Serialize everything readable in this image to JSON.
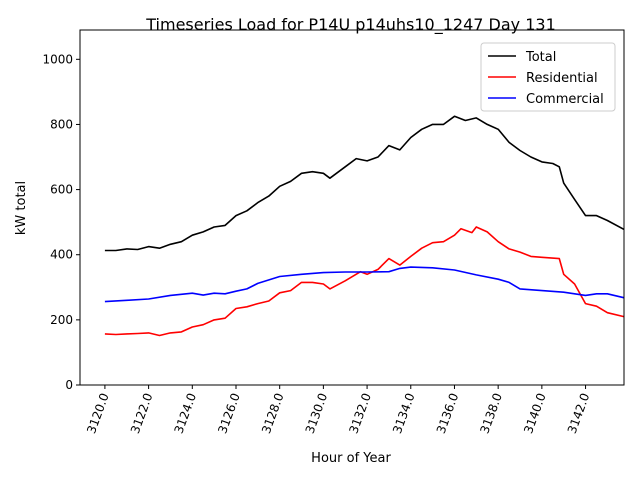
{
  "chart_data": {
    "type": "line",
    "title": "Timeseries Load for P14U p14uhs10_1247  Day 131",
    "xlabel": "Hour of Year",
    "ylabel": "kW total",
    "xlim": [
      3118.86,
      3143.76
    ],
    "ylim": [
      0,
      1090
    ],
    "xticks": [
      "3120.0",
      "3122.0",
      "3124.0",
      "3126.0",
      "3128.0",
      "3130.0",
      "3132.0",
      "3134.0",
      "3136.0",
      "3138.0",
      "3140.0",
      "3142.0"
    ],
    "xtick_values": [
      3120,
      3122,
      3124,
      3126,
      3128,
      3130,
      3132,
      3134,
      3136,
      3138,
      3140,
      3142
    ],
    "yticks": [
      "0",
      "200",
      "400",
      "600",
      "800",
      "1000"
    ],
    "ytick_values": [
      0,
      200,
      400,
      600,
      800,
      1000
    ],
    "grid": false,
    "legend_position": "top-right",
    "series": [
      {
        "name": "Total",
        "color": "#000000",
        "x": [
          3120,
          3120.5,
          3121,
          3121.5,
          3122,
          3122.5,
          3123,
          3123.5,
          3124,
          3124.5,
          3125,
          3125.5,
          3126,
          3126.5,
          3127,
          3127.5,
          3128,
          3128.5,
          3129,
          3129.5,
          3130,
          3130.3,
          3131,
          3131.5,
          3132,
          3132.5,
          3133,
          3133.5,
          3134,
          3134.5,
          3135,
          3135.5,
          3136,
          3136.5,
          3137,
          3137.5,
          3138,
          3138.5,
          3139,
          3139.5,
          3140,
          3140.5,
          3140.8,
          3141,
          3141.5,
          3142,
          3142.5,
          3143,
          3143.75
        ],
        "values": [
          413,
          413,
          418,
          416,
          425,
          420,
          432,
          440,
          460,
          470,
          485,
          490,
          520,
          535,
          560,
          580,
          610,
          625,
          650,
          655,
          650,
          635,
          670,
          695,
          688,
          700,
          735,
          722,
          760,
          785,
          800,
          800,
          825,
          812,
          820,
          800,
          785,
          745,
          720,
          700,
          685,
          680,
          670,
          620,
          570,
          520,
          520,
          505,
          478
        ]
      },
      {
        "name": "Residential",
        "color": "#ff0000",
        "x": [
          3120,
          3120.5,
          3121,
          3121.5,
          3122,
          3122.5,
          3123,
          3123.5,
          3124,
          3124.5,
          3125,
          3125.5,
          3126,
          3126.5,
          3127,
          3127.5,
          3128,
          3128.5,
          3129,
          3129.5,
          3130,
          3130.3,
          3131,
          3131.7,
          3132,
          3132.5,
          3133,
          3133.5,
          3134,
          3134.5,
          3135,
          3135.5,
          3136,
          3136.3,
          3136.8,
          3137,
          3137.5,
          3138,
          3138.5,
          3139,
          3139.5,
          3140,
          3140.8,
          3141,
          3141.5,
          3142,
          3142.5,
          3143,
          3143.75
        ],
        "values": [
          157,
          155,
          157,
          158,
          160,
          152,
          160,
          163,
          178,
          185,
          200,
          205,
          235,
          240,
          250,
          258,
          283,
          290,
          315,
          315,
          310,
          295,
          320,
          348,
          340,
          355,
          388,
          368,
          395,
          420,
          437,
          440,
          460,
          480,
          468,
          485,
          470,
          440,
          418,
          408,
          395,
          392,
          388,
          340,
          310,
          250,
          242,
          222,
          210
        ]
      },
      {
        "name": "Commercial",
        "color": "#0000ff",
        "x": [
          3120,
          3121,
          3122,
          3123,
          3124,
          3124.5,
          3125,
          3125.5,
          3126,
          3126.5,
          3127,
          3128,
          3129,
          3130,
          3131,
          3132,
          3133,
          3133.5,
          3134,
          3135,
          3136,
          3137,
          3138,
          3138.5,
          3139,
          3140,
          3141,
          3142,
          3142.5,
          3143,
          3143.75
        ],
        "values": [
          256,
          260,
          264,
          275,
          282,
          276,
          282,
          280,
          288,
          295,
          312,
          333,
          340,
          345,
          347,
          347,
          348,
          358,
          362,
          360,
          353,
          338,
          325,
          315,
          295,
          290,
          285,
          275,
          280,
          280,
          268
        ]
      }
    ]
  }
}
